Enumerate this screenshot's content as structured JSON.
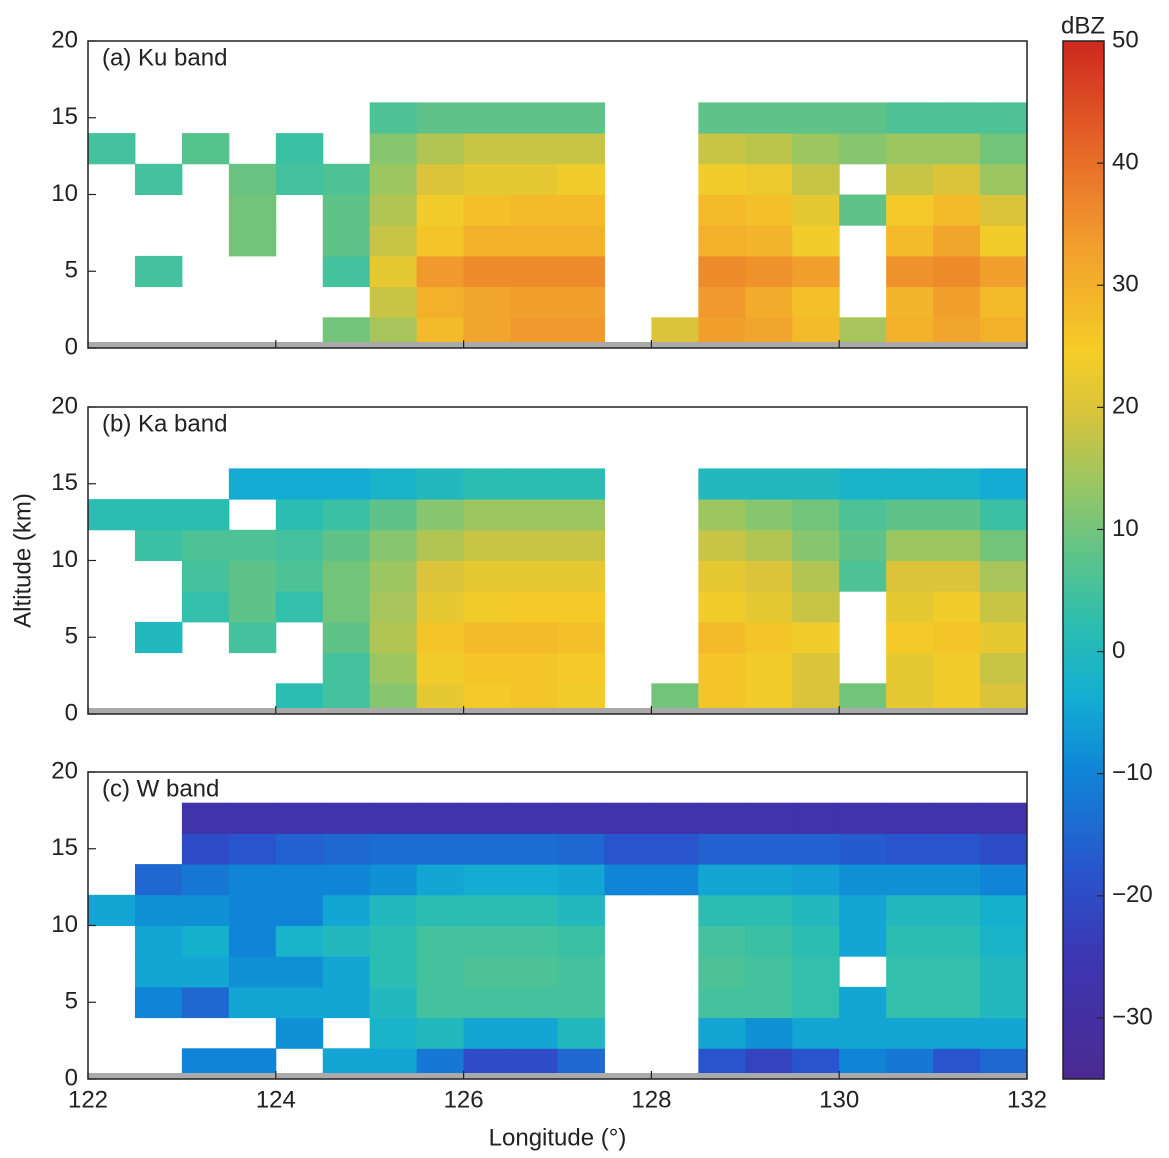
{
  "chart_data": [
    {
      "type": "heatmap",
      "title": "(a) Ku band",
      "xbins": [
        122,
        122.5,
        123,
        123.5,
        124,
        124.5,
        125,
        125.5,
        126,
        126.5,
        127,
        127.5,
        128,
        128.5,
        129,
        129.5,
        130,
        130.5,
        131,
        131.5,
        132
      ],
      "ybins": [
        0,
        2,
        4,
        6,
        8,
        10,
        12,
        14,
        16,
        18
      ],
      "z": [
        [
          null,
          null,
          null,
          null,
          null,
          10,
          15,
          28,
          32,
          34,
          34,
          null,
          20,
          33,
          32,
          28,
          15,
          30,
          32,
          30
        ],
        [
          null,
          null,
          null,
          null,
          null,
          null,
          18,
          30,
          32,
          33,
          33,
          null,
          null,
          34,
          31,
          27,
          null,
          29,
          33,
          28
        ],
        [
          null,
          5,
          null,
          null,
          null,
          5,
          22,
          34,
          36,
          36,
          36,
          null,
          null,
          36,
          35,
          33,
          null,
          35,
          36,
          33
        ],
        [
          null,
          null,
          null,
          10,
          null,
          8,
          18,
          26,
          30,
          30,
          30,
          null,
          null,
          30,
          29,
          24,
          null,
          28,
          32,
          24
        ],
        [
          null,
          null,
          null,
          10,
          null,
          8,
          16,
          24,
          27,
          28,
          28,
          null,
          null,
          28,
          27,
          22,
          8,
          25,
          28,
          20
        ],
        [
          null,
          5,
          null,
          9,
          5,
          6,
          14,
          20,
          22,
          22,
          24,
          null,
          null,
          24,
          23,
          18,
          null,
          18,
          20,
          14
        ],
        [
          5,
          null,
          7,
          null,
          4,
          null,
          12,
          16,
          18,
          18,
          18,
          null,
          null,
          18,
          17,
          14,
          12,
          14,
          14,
          10
        ],
        [
          null,
          null,
          null,
          null,
          null,
          null,
          6,
          8,
          8,
          8,
          8,
          null,
          null,
          8,
          8,
          8,
          8,
          6,
          6,
          6
        ],
        [
          null,
          null,
          null,
          null,
          null,
          null,
          null,
          null,
          null,
          null,
          null,
          null,
          null,
          null,
          null,
          null,
          null,
          null,
          null,
          null
        ]
      ],
      "xlim": [
        122,
        132
      ],
      "xticks": [
        122,
        124,
        126,
        128,
        130,
        132
      ],
      "ylim": [
        0,
        20
      ],
      "yticks": [
        0,
        5,
        10,
        15,
        20
      ]
    },
    {
      "type": "heatmap",
      "title": "(b) Ka band",
      "ylabel": "Altitude (km)",
      "xbins": [
        122,
        122.5,
        123,
        123.5,
        124,
        124.5,
        125,
        125.5,
        126,
        126.5,
        127,
        127.5,
        128,
        128.5,
        129,
        129.5,
        130,
        130.5,
        131,
        131.5,
        132
      ],
      "ybins": [
        0,
        2,
        4,
        6,
        8,
        10,
        12,
        14,
        16,
        18
      ],
      "z": [
        [
          null,
          null,
          null,
          null,
          2,
          5,
          12,
          22,
          25,
          26,
          24,
          null,
          10,
          26,
          24,
          20,
          10,
          22,
          24,
          20
        ],
        [
          null,
          null,
          null,
          null,
          null,
          5,
          14,
          24,
          26,
          26,
          25,
          null,
          null,
          26,
          24,
          20,
          null,
          22,
          24,
          18
        ],
        [
          null,
          0,
          null,
          5,
          null,
          8,
          16,
          26,
          28,
          28,
          27,
          null,
          null,
          28,
          26,
          24,
          null,
          25,
          26,
          22
        ],
        [
          null,
          null,
          3,
          8,
          3,
          10,
          15,
          22,
          24,
          25,
          25,
          null,
          null,
          24,
          22,
          18,
          null,
          22,
          24,
          18
        ],
        [
          null,
          null,
          5,
          8,
          6,
          10,
          14,
          20,
          22,
          22,
          22,
          null,
          null,
          22,
          20,
          16,
          6,
          20,
          20,
          15
        ],
        [
          null,
          4,
          6,
          6,
          5,
          8,
          12,
          16,
          18,
          18,
          18,
          null,
          null,
          18,
          16,
          12,
          8,
          14,
          14,
          10
        ],
        [
          2,
          2,
          2,
          null,
          2,
          4,
          8,
          12,
          14,
          14,
          14,
          null,
          null,
          14,
          12,
          10,
          6,
          8,
          8,
          4
        ],
        [
          null,
          null,
          null,
          -4,
          -4,
          -4,
          -2,
          0,
          2,
          2,
          2,
          null,
          null,
          0,
          0,
          0,
          -2,
          -2,
          -2,
          -4
        ],
        [
          null,
          null,
          null,
          null,
          null,
          null,
          null,
          null,
          null,
          null,
          null,
          null,
          null,
          null,
          null,
          null,
          null,
          null,
          null,
          null
        ]
      ],
      "xlim": [
        122,
        132
      ],
      "xticks": [
        122,
        124,
        126,
        128,
        130,
        132
      ],
      "ylim": [
        0,
        20
      ],
      "yticks": [
        0,
        5,
        10,
        15,
        20
      ]
    },
    {
      "type": "heatmap",
      "title": "(c) W band",
      "xlabel": "Longitude (°)",
      "xbins": [
        122,
        122.5,
        123,
        123.5,
        124,
        124.5,
        125,
        125.5,
        126,
        126.5,
        127,
        127.5,
        128,
        128.5,
        129,
        129.5,
        130,
        130.5,
        131,
        131.5,
        132
      ],
      "ybins": [
        0,
        2,
        4,
        6,
        8,
        10,
        12,
        14,
        16,
        18
      ],
      "z": [
        [
          null,
          null,
          -10,
          -10,
          null,
          -5,
          -5,
          -12,
          -20,
          -20,
          -15,
          null,
          null,
          -18,
          -22,
          -18,
          -10,
          -12,
          -18,
          -15
        ],
        [
          null,
          null,
          null,
          null,
          -8,
          null,
          -2,
          0,
          -5,
          -5,
          0,
          null,
          null,
          -5,
          -8,
          -5,
          -5,
          -5,
          -5,
          -5
        ],
        [
          null,
          -10,
          -15,
          -5,
          -5,
          -5,
          0,
          5,
          5,
          5,
          5,
          null,
          null,
          5,
          5,
          3,
          -5,
          3,
          3,
          0
        ],
        [
          null,
          -5,
          -5,
          -8,
          -8,
          -5,
          2,
          5,
          6,
          6,
          5,
          null,
          null,
          6,
          5,
          3,
          null,
          3,
          3,
          0
        ],
        [
          null,
          -5,
          -3,
          -10,
          -2,
          0,
          2,
          5,
          5,
          5,
          4,
          null,
          null,
          5,
          4,
          2,
          -5,
          2,
          2,
          -2
        ],
        [
          -5,
          -8,
          -8,
          -10,
          -10,
          -5,
          0,
          2,
          2,
          2,
          0,
          null,
          null,
          2,
          2,
          0,
          -5,
          0,
          0,
          -3
        ],
        [
          null,
          -15,
          -12,
          -10,
          -10,
          -10,
          -8,
          -5,
          -4,
          -4,
          -5,
          -10,
          -10,
          -5,
          -5,
          -6,
          -8,
          -8,
          -8,
          -10
        ],
        [
          null,
          null,
          -20,
          -18,
          -16,
          -15,
          -14,
          -14,
          -14,
          -14,
          -15,
          -18,
          -18,
          -16,
          -16,
          -16,
          -17,
          -18,
          -18,
          -20
        ],
        [
          null,
          null,
          -28,
          -28,
          -27,
          -27,
          -27,
          -27,
          -27,
          -27,
          -28,
          -28,
          -28,
          -28,
          -28,
          -28,
          -28,
          -28,
          -28,
          -28
        ]
      ],
      "xlim": [
        122,
        132
      ],
      "xticks": [
        122,
        124,
        126,
        128,
        130,
        132
      ],
      "ylim": [
        0,
        20
      ],
      "yticks": [
        0,
        5,
        10,
        15,
        20
      ]
    }
  ],
  "colorbar": {
    "label": "dBZ",
    "lim": [
      -35,
      50
    ],
    "ticks": [
      {
        "value": -30,
        "label": "−30"
      },
      {
        "value": -20,
        "label": "−20"
      },
      {
        "value": -10,
        "label": "−10"
      },
      0,
      10,
      20,
      30,
      40,
      50
    ]
  }
}
